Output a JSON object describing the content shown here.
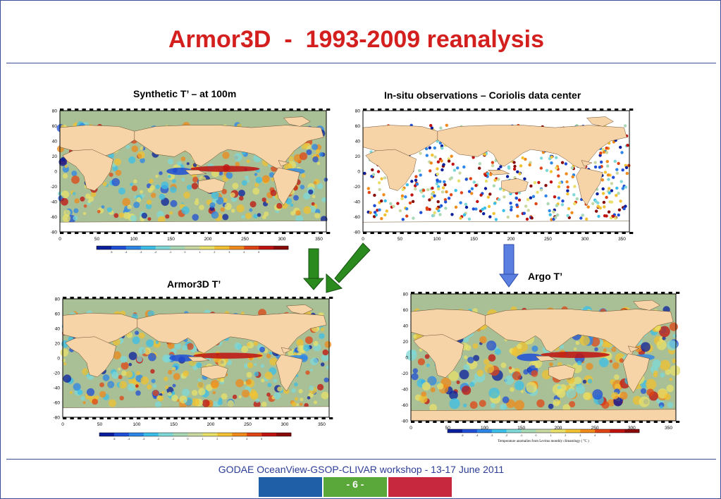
{
  "slide": {
    "title": "Armor3D  -  1993-2009 reanalysis",
    "footer": "GODAE OceanView-GSOP-CLIVAR workshop  -  13-17 June 2011",
    "page": "- 6 -",
    "colors": {
      "title": "#d41f1f",
      "rule": "#3b4f96",
      "arrow_green": "#2a8a1e",
      "arrow_blue": "#5b7fe0",
      "footer_blue": "#1f5fa8",
      "footer_green": "#5aa83a",
      "footer_red": "#c8283e"
    }
  },
  "panels": {
    "synthetic": {
      "caption": "Synthetic T’ – at 100m"
    },
    "insitu": {
      "caption": "In-situ observations – Coriolis data center"
    },
    "armor3d": {
      "caption": "Armor3D T’"
    },
    "argo": {
      "caption": "Argo T’",
      "colorbar_label": "Temperature anomalies from Levitus monthly climatology ( °C )"
    }
  },
  "map_axes": {
    "y_ticks": [
      "80",
      "60",
      "40",
      "20",
      "0",
      "-20",
      "-40",
      "-60",
      "-80"
    ],
    "x_ticks": [
      "0",
      "50",
      "100",
      "150",
      "200",
      "250",
      "300",
      "350"
    ]
  },
  "colorbar": {
    "colors": [
      "#0a1f9e",
      "#1f4fd6",
      "#2c86e8",
      "#3bbfe8",
      "#7fd8d8",
      "#a8d8b4",
      "#c8d8a0",
      "#e8e06a",
      "#f2c232",
      "#f08a1a",
      "#e04414",
      "#c0120f",
      "#8a0a0a"
    ],
    "ticks": [
      "-5",
      "-4",
      "-3",
      "-2",
      "-1",
      "0",
      "1",
      "2",
      "3",
      "4",
      "5"
    ]
  }
}
